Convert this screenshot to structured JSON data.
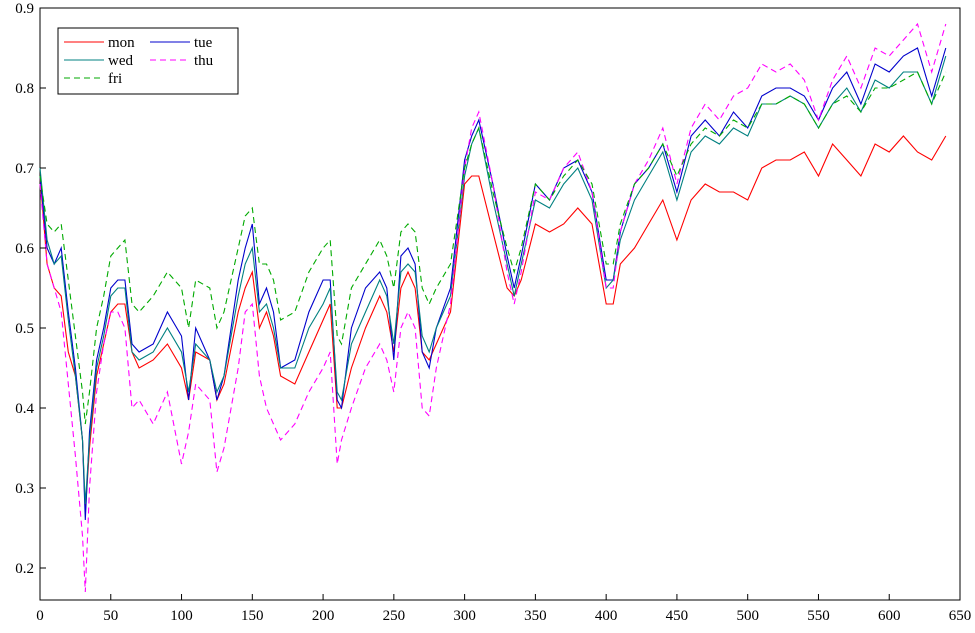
{
  "chart_data": {
    "type": "line",
    "title": "",
    "xlabel": "",
    "ylabel": "",
    "xlim": [
      0,
      650
    ],
    "ylim": [
      0.16,
      0.9
    ],
    "xticks": [
      0,
      50,
      100,
      150,
      200,
      250,
      300,
      350,
      400,
      450,
      500,
      550,
      600,
      650
    ],
    "yticks": [
      0.2,
      0.3,
      0.4,
      0.5,
      0.6,
      0.7,
      0.8,
      0.9
    ],
    "grid": false,
    "legend_position": "top-left",
    "x": [
      0,
      5,
      10,
      15,
      20,
      25,
      30,
      32,
      35,
      40,
      45,
      50,
      55,
      60,
      65,
      70,
      80,
      90,
      100,
      105,
      110,
      120,
      125,
      130,
      140,
      145,
      150,
      155,
      160,
      165,
      170,
      180,
      190,
      200,
      205,
      210,
      213,
      220,
      230,
      240,
      245,
      250,
      255,
      260,
      265,
      270,
      275,
      280,
      290,
      300,
      305,
      310,
      320,
      330,
      335,
      340,
      350,
      360,
      370,
      380,
      390,
      400,
      405,
      410,
      420,
      430,
      440,
      450,
      460,
      470,
      480,
      490,
      500,
      510,
      520,
      530,
      540,
      550,
      560,
      570,
      580,
      590,
      600,
      610,
      620,
      630,
      640
    ],
    "series": [
      {
        "name": "mon",
        "color": "#ff0000",
        "dash": "",
        "values": [
          0.69,
          0.58,
          0.55,
          0.54,
          0.47,
          0.44,
          0.36,
          0.27,
          0.35,
          0.44,
          0.48,
          0.52,
          0.53,
          0.53,
          0.47,
          0.45,
          0.46,
          0.48,
          0.45,
          0.41,
          0.47,
          0.46,
          0.41,
          0.43,
          0.52,
          0.55,
          0.57,
          0.5,
          0.52,
          0.49,
          0.44,
          0.43,
          0.47,
          0.51,
          0.53,
          0.4,
          0.4,
          0.45,
          0.5,
          0.54,
          0.52,
          0.47,
          0.55,
          0.57,
          0.55,
          0.47,
          0.46,
          0.48,
          0.52,
          0.68,
          0.69,
          0.69,
          0.62,
          0.55,
          0.54,
          0.56,
          0.63,
          0.62,
          0.63,
          0.65,
          0.63,
          0.53,
          0.53,
          0.58,
          0.6,
          0.63,
          0.66,
          0.61,
          0.66,
          0.68,
          0.67,
          0.67,
          0.66,
          0.7,
          0.71,
          0.71,
          0.72,
          0.69,
          0.73,
          0.71,
          0.69,
          0.73,
          0.72,
          0.74,
          0.72,
          0.71,
          0.74
        ]
      },
      {
        "name": "tue",
        "color": "#0000cc",
        "dash": "",
        "values": [
          0.69,
          0.6,
          0.58,
          0.6,
          0.52,
          0.45,
          0.36,
          0.26,
          0.37,
          0.46,
          0.5,
          0.55,
          0.56,
          0.56,
          0.48,
          0.47,
          0.48,
          0.52,
          0.49,
          0.41,
          0.5,
          0.46,
          0.41,
          0.44,
          0.56,
          0.6,
          0.63,
          0.53,
          0.55,
          0.52,
          0.45,
          0.46,
          0.52,
          0.56,
          0.56,
          0.41,
          0.4,
          0.5,
          0.55,
          0.57,
          0.55,
          0.46,
          0.59,
          0.6,
          0.58,
          0.47,
          0.45,
          0.5,
          0.55,
          0.71,
          0.74,
          0.76,
          0.68,
          0.59,
          0.55,
          0.59,
          0.68,
          0.66,
          0.7,
          0.71,
          0.67,
          0.56,
          0.56,
          0.62,
          0.68,
          0.7,
          0.73,
          0.67,
          0.74,
          0.76,
          0.74,
          0.77,
          0.75,
          0.79,
          0.8,
          0.8,
          0.79,
          0.76,
          0.8,
          0.82,
          0.78,
          0.83,
          0.82,
          0.84,
          0.85,
          0.79,
          0.85
        ]
      },
      {
        "name": "wed",
        "color": "#008080",
        "dash": "",
        "values": [
          0.7,
          0.61,
          0.58,
          0.59,
          0.51,
          0.44,
          0.36,
          0.28,
          0.36,
          0.45,
          0.49,
          0.54,
          0.55,
          0.55,
          0.47,
          0.46,
          0.47,
          0.5,
          0.47,
          0.42,
          0.48,
          0.46,
          0.42,
          0.44,
          0.54,
          0.58,
          0.6,
          0.52,
          0.53,
          0.5,
          0.45,
          0.45,
          0.5,
          0.53,
          0.55,
          0.42,
          0.41,
          0.48,
          0.52,
          0.56,
          0.54,
          0.48,
          0.57,
          0.58,
          0.57,
          0.49,
          0.47,
          0.5,
          0.54,
          0.69,
          0.73,
          0.75,
          0.66,
          0.58,
          0.54,
          0.58,
          0.66,
          0.65,
          0.68,
          0.7,
          0.66,
          0.55,
          0.56,
          0.61,
          0.66,
          0.69,
          0.72,
          0.66,
          0.72,
          0.74,
          0.73,
          0.75,
          0.74,
          0.78,
          0.78,
          0.79,
          0.78,
          0.75,
          0.78,
          0.8,
          0.77,
          0.81,
          0.8,
          0.82,
          0.82,
          0.78,
          0.84
        ]
      },
      {
        "name": "thu",
        "color": "#ff00ff",
        "dash": "6,4",
        "values": [
          0.68,
          0.58,
          0.55,
          0.52,
          0.43,
          0.34,
          0.24,
          0.17,
          0.3,
          0.42,
          0.48,
          0.52,
          0.52,
          0.5,
          0.4,
          0.41,
          0.38,
          0.42,
          0.33,
          0.37,
          0.43,
          0.41,
          0.32,
          0.35,
          0.45,
          0.52,
          0.53,
          0.44,
          0.4,
          0.38,
          0.36,
          0.38,
          0.42,
          0.45,
          0.47,
          0.33,
          0.36,
          0.4,
          0.45,
          0.48,
          0.46,
          0.42,
          0.5,
          0.52,
          0.5,
          0.4,
          0.39,
          0.45,
          0.53,
          0.7,
          0.75,
          0.77,
          0.68,
          0.57,
          0.53,
          0.57,
          0.67,
          0.66,
          0.7,
          0.72,
          0.67,
          0.55,
          0.55,
          0.62,
          0.68,
          0.71,
          0.75,
          0.68,
          0.75,
          0.78,
          0.76,
          0.79,
          0.8,
          0.83,
          0.82,
          0.83,
          0.81,
          0.76,
          0.81,
          0.84,
          0.8,
          0.85,
          0.84,
          0.86,
          0.88,
          0.82,
          0.88
        ]
      },
      {
        "name": "fri",
        "color": "#00aa00",
        "dash": "6,4",
        "values": [
          0.69,
          0.63,
          0.62,
          0.63,
          0.56,
          0.49,
          0.42,
          0.38,
          0.42,
          0.5,
          0.54,
          0.59,
          0.6,
          0.61,
          0.53,
          0.52,
          0.54,
          0.57,
          0.55,
          0.5,
          0.56,
          0.55,
          0.5,
          0.52,
          0.6,
          0.64,
          0.65,
          0.58,
          0.58,
          0.56,
          0.51,
          0.52,
          0.57,
          0.6,
          0.61,
          0.49,
          0.48,
          0.55,
          0.58,
          0.61,
          0.59,
          0.55,
          0.62,
          0.63,
          0.62,
          0.55,
          0.53,
          0.55,
          0.58,
          0.7,
          0.73,
          0.75,
          0.67,
          0.6,
          0.57,
          0.6,
          0.68,
          0.66,
          0.69,
          0.71,
          0.68,
          0.58,
          0.58,
          0.63,
          0.68,
          0.7,
          0.73,
          0.69,
          0.73,
          0.75,
          0.74,
          0.76,
          0.75,
          0.78,
          0.78,
          0.79,
          0.78,
          0.75,
          0.78,
          0.79,
          0.77,
          0.8,
          0.8,
          0.81,
          0.82,
          0.78,
          0.82
        ]
      }
    ],
    "legend": {
      "columns": 2,
      "entries": [
        "mon",
        "tue",
        "wed",
        "thu",
        "fri"
      ]
    }
  }
}
